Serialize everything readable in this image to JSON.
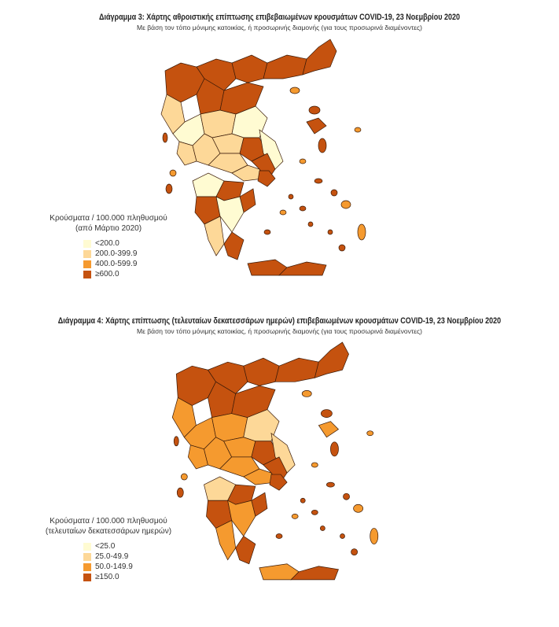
{
  "colors": [
    "#fffbd2",
    "#fdd898",
    "#f59a2f",
    "#c5520f"
  ],
  "border_color": "#3a1a08",
  "map1": {
    "title": "Διάγραμμα 3: Χάρτης αθροιστικής επίπτωσης επιβεβαιωμένων κρουσμάτων COVID-19, 23 Νοεμβρίου 2020",
    "subtitle": "Με βάση τον τόπο μόνιμης κατοικίας, ή προσωρινής διαμονής (για τους προσωρινά διαμένοντες)",
    "legend": {
      "title_line1": "Κρούσματα / 100.000 πληθυσμού",
      "title_line2": "(από Μάρτιο 2020)",
      "items": [
        "<200.0",
        "200.0-399.9",
        "400.0-599.9",
        "≥600.0"
      ]
    },
    "levels": [
      3,
      3,
      3,
      3,
      3,
      3,
      1,
      0,
      1,
      3,
      0,
      1,
      1,
      1,
      3,
      0,
      1,
      1,
      3,
      3,
      0,
      3,
      3,
      3,
      0,
      1,
      3,
      3,
      3,
      3
    ]
  },
  "map2": {
    "title": "Διάγραμμα 4: Χάρτης επίπτωσης (τελευταίων δεκατεσσάρων ημερών) επιβεβαιωμένων κρουσμάτων COVID-19, 23 Νοεμβρίου 2020",
    "subtitle": "Με βάση τον τόπο μόνιμης κατοικίας, ή προσωρινής διαμονής (για τους προσωρινά διαμένοντες)",
    "legend": {
      "title_line1": "Κρούσματα / 100.000 πληθυσμού",
      "title_line2": "(τελευταίων δεκατεσσάρων ημερών)",
      "items": [
        "<25.0",
        "25.0-49.9",
        "50.0-149.9",
        "≥150.0"
      ]
    },
    "levels": [
      3,
      3,
      3,
      3,
      3,
      3,
      2,
      2,
      2,
      3,
      1,
      2,
      2,
      2,
      3,
      1,
      2,
      2,
      3,
      3,
      1,
      3,
      3,
      3,
      2,
      2,
      3,
      2,
      3,
      2
    ]
  }
}
